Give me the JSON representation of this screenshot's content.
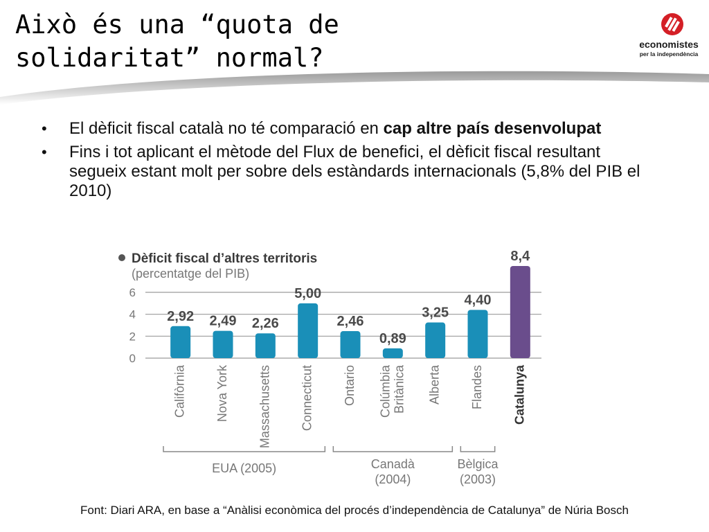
{
  "slide": {
    "title_line1": "Això és una “quota de",
    "title_line2": "solidaritat” normal?",
    "logo": {
      "name": "economistes",
      "subtitle": "per la independència",
      "color": "#d41f26"
    },
    "bullets": [
      {
        "text_before": "El dèficit fiscal català no té comparació en ",
        "bold": "cap altre país desenvolupat",
        "text_after": ""
      },
      {
        "text_before": "Fins i tot aplicant el mètode del Flux de benefici, el dèficit fiscal resultant segueix estant molt per sobre dels estàndards internacionals (5,8% del PIB el 2010)",
        "bold": "",
        "text_after": ""
      }
    ],
    "source": "Font: Diari ARA, en base a “Anàlisi econòmica del procés d’independència de Catalunya” de Núria Bosch"
  },
  "chart_data": {
    "type": "bar",
    "title": "Dèficit fiscal d’altres territoris",
    "subtitle": "(percentatge del PIB)",
    "categories": [
      "Califòrnia",
      "Nova York",
      "Massachusetts",
      "Connecticut",
      "Ontario",
      "Colúmbia Britànica",
      "Alberta",
      "Flandes",
      "Catalunya"
    ],
    "category_lines": [
      [
        "Califòrnia"
      ],
      [
        "Nova York"
      ],
      [
        "Massachusetts"
      ],
      [
        "Connecticut"
      ],
      [
        "Ontario"
      ],
      [
        "Colúmbia",
        "Britànica"
      ],
      [
        "Alberta"
      ],
      [
        "Flandes"
      ],
      [
        "Catalunya"
      ]
    ],
    "values": [
      2.92,
      2.49,
      2.26,
      5.0,
      2.46,
      0.89,
      3.25,
      4.4,
      8.4
    ],
    "value_labels": [
      "2,92",
      "2,49",
      "2,26",
      "5,00",
      "2,46",
      "0,89",
      "3,25",
      "4,40",
      "8,4"
    ],
    "yticks": [
      0,
      2,
      4,
      6
    ],
    "ylim": [
      0,
      8.4
    ],
    "grid": true,
    "colors": {
      "default": "#1a8fb8",
      "highlight": "#6a4d8c"
    },
    "highlight_index": 8,
    "groups": [
      {
        "label": "EUA (2005)",
        "lines": [
          "EUA (2005)"
        ],
        "from": 0,
        "to": 3
      },
      {
        "label": "Canadà (2004)",
        "lines": [
          "Canadà",
          "(2004)"
        ],
        "from": 4,
        "to": 6
      },
      {
        "label": "Bèlgica (2003)",
        "lines": [
          "Bèlgica",
          "(2003)"
        ],
        "from": 7,
        "to": 7
      }
    ]
  }
}
